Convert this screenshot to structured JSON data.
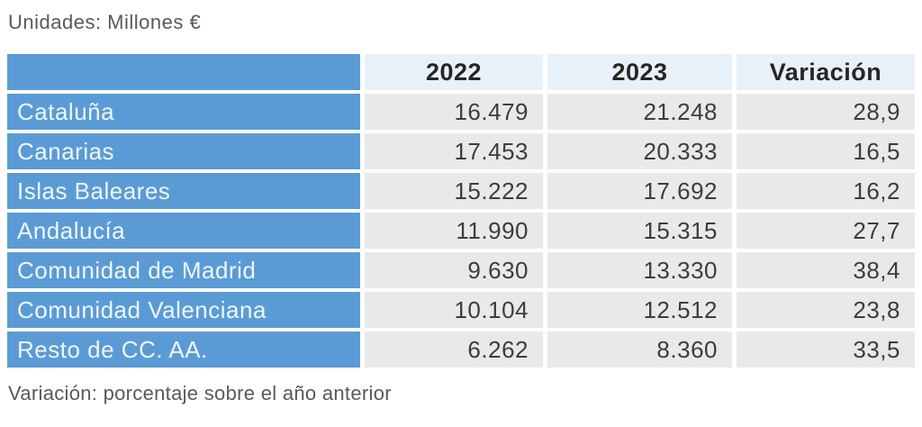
{
  "header": {
    "units_label": "Unidades: Millones €"
  },
  "table": {
    "columns": [
      "",
      "2022",
      "2023",
      "Variación"
    ],
    "rows": [
      {
        "region": "Cataluña",
        "y2022": "16.479",
        "y2023": "21.248",
        "variation": "28,9"
      },
      {
        "region": "Canarias",
        "y2022": "17.453",
        "y2023": "20.333",
        "variation": "16,5"
      },
      {
        "region": "Islas Baleares",
        "y2022": "15.222",
        "y2023": "17.692",
        "variation": "16,2"
      },
      {
        "region": "Andalucía",
        "y2022": "11.990",
        "y2023": "15.315",
        "variation": "27,7"
      },
      {
        "region": "Comunidad de Madrid",
        "y2022": "9.630",
        "y2023": "13.330",
        "variation": "38,4"
      },
      {
        "region": "Comunidad Valenciana",
        "y2022": "10.104",
        "y2023": "12.512",
        "variation": "23,8"
      },
      {
        "region": "Resto de CC. AA.",
        "y2022": "6.262",
        "y2023": "8.360",
        "variation": "33,5"
      }
    ]
  },
  "footer": {
    "note": "Variación: porcentaje sobre el año anterior"
  },
  "colors": {
    "row_header_blue": "#5b9bd5",
    "column_header_light_blue": "#e7f1f9",
    "data_cell_gray": "#e9e9e9",
    "row_label_text": "#eff6fc",
    "number_text": "#3d3d3d",
    "caption_text": "#595959"
  },
  "chart_data": {
    "type": "table",
    "title": "Unidades: Millones €",
    "columns": [
      "",
      "2022",
      "2023",
      "Variación"
    ],
    "rows": [
      [
        "Cataluña",
        16479,
        21248,
        28.9
      ],
      [
        "Canarias",
        17453,
        20333,
        16.5
      ],
      [
        "Islas Baleares",
        15222,
        17692,
        16.2
      ],
      [
        "Andalucía",
        11990,
        15315,
        27.7
      ],
      [
        "Comunidad de Madrid",
        9630,
        13330,
        38.4
      ],
      [
        "Comunidad Valenciana",
        10104,
        12512,
        23.8
      ],
      [
        "Resto de CC. AA.",
        6262,
        8360,
        33.5
      ]
    ],
    "units": "Millones €",
    "footnote": "Variación: porcentaje sobre el año anterior"
  }
}
